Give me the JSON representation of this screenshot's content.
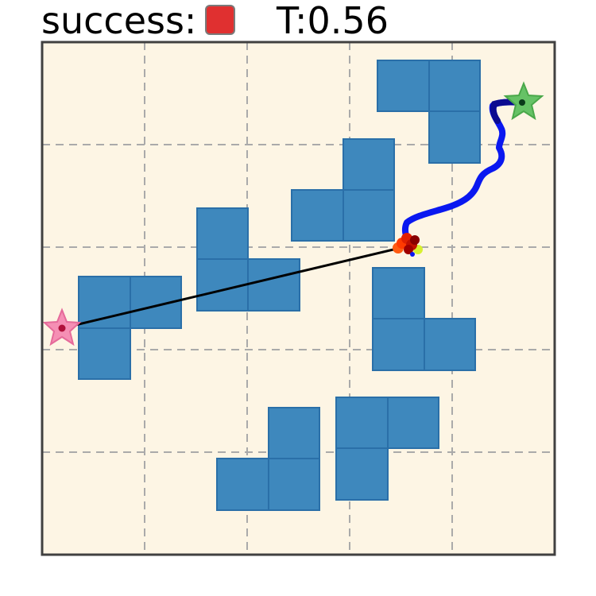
{
  "header": {
    "success_label": "success:",
    "success_color": "#e03030",
    "time_label": "T:0.56"
  },
  "colors": {
    "background": "#fdf5e4",
    "frame": "#404040",
    "grid": "#aaaaaa",
    "obstacle": "#3e88bd",
    "obstacle_edge": "#2a6fa8",
    "start_star": "#f58fb4",
    "goal_star": "#66c266",
    "line": "#000000",
    "path": "#0a18f0"
  },
  "icons": {
    "start": "pink-star-icon",
    "goal": "green-star-icon"
  }
}
